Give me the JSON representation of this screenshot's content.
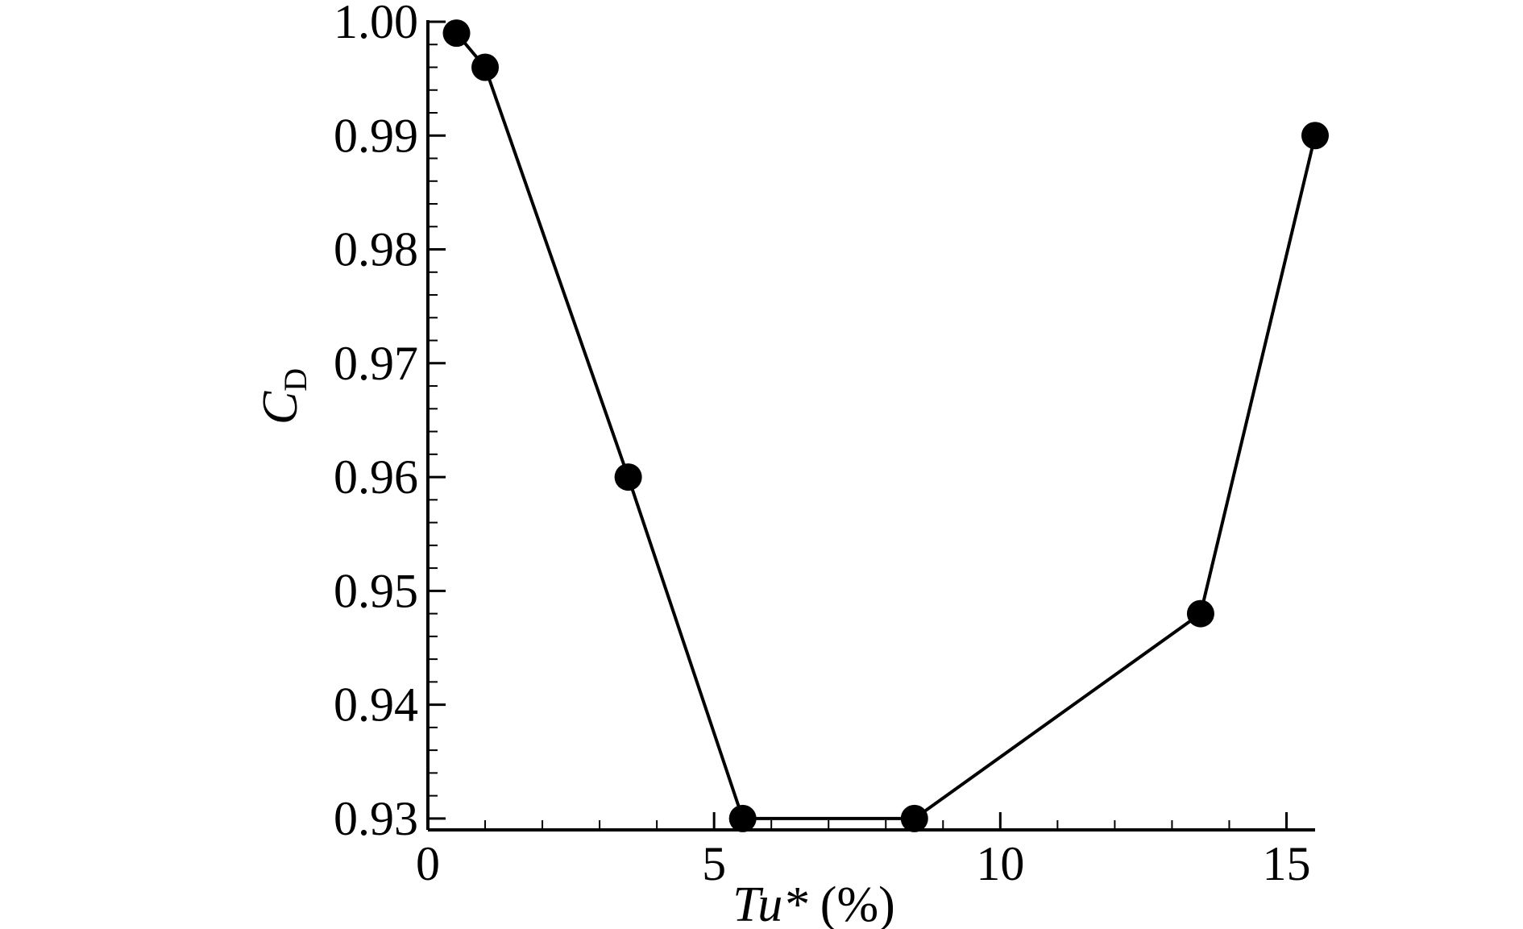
{
  "chart_data": {
    "type": "line",
    "title": "",
    "xlabel": {
      "main": "Tu*",
      "unit": "(%)"
    },
    "ylabel": {
      "main": "C",
      "sub": "D"
    },
    "xlim": [
      0,
      15.5
    ],
    "ylim": [
      0.929,
      1.0
    ],
    "xticks": [
      0,
      5,
      10,
      15
    ],
    "xtick_labels": [
      "0",
      "5",
      "10",
      "15"
    ],
    "yticks": [
      0.93,
      0.94,
      0.95,
      0.96,
      0.97,
      0.98,
      0.99,
      1.0
    ],
    "ytick_labels": [
      "0.93",
      "0.94",
      "0.95",
      "0.96",
      "0.97",
      "0.98",
      "0.99",
      "1.00"
    ],
    "grid": false,
    "series": [
      {
        "color": "#000000",
        "marker": "filled-circle",
        "x": [
          0.5,
          1.0,
          3.5,
          5.5,
          8.5,
          13.5,
          15.5
        ],
        "y": [
          0.999,
          0.996,
          0.96,
          0.93,
          0.93,
          0.948,
          0.99
        ]
      }
    ]
  }
}
